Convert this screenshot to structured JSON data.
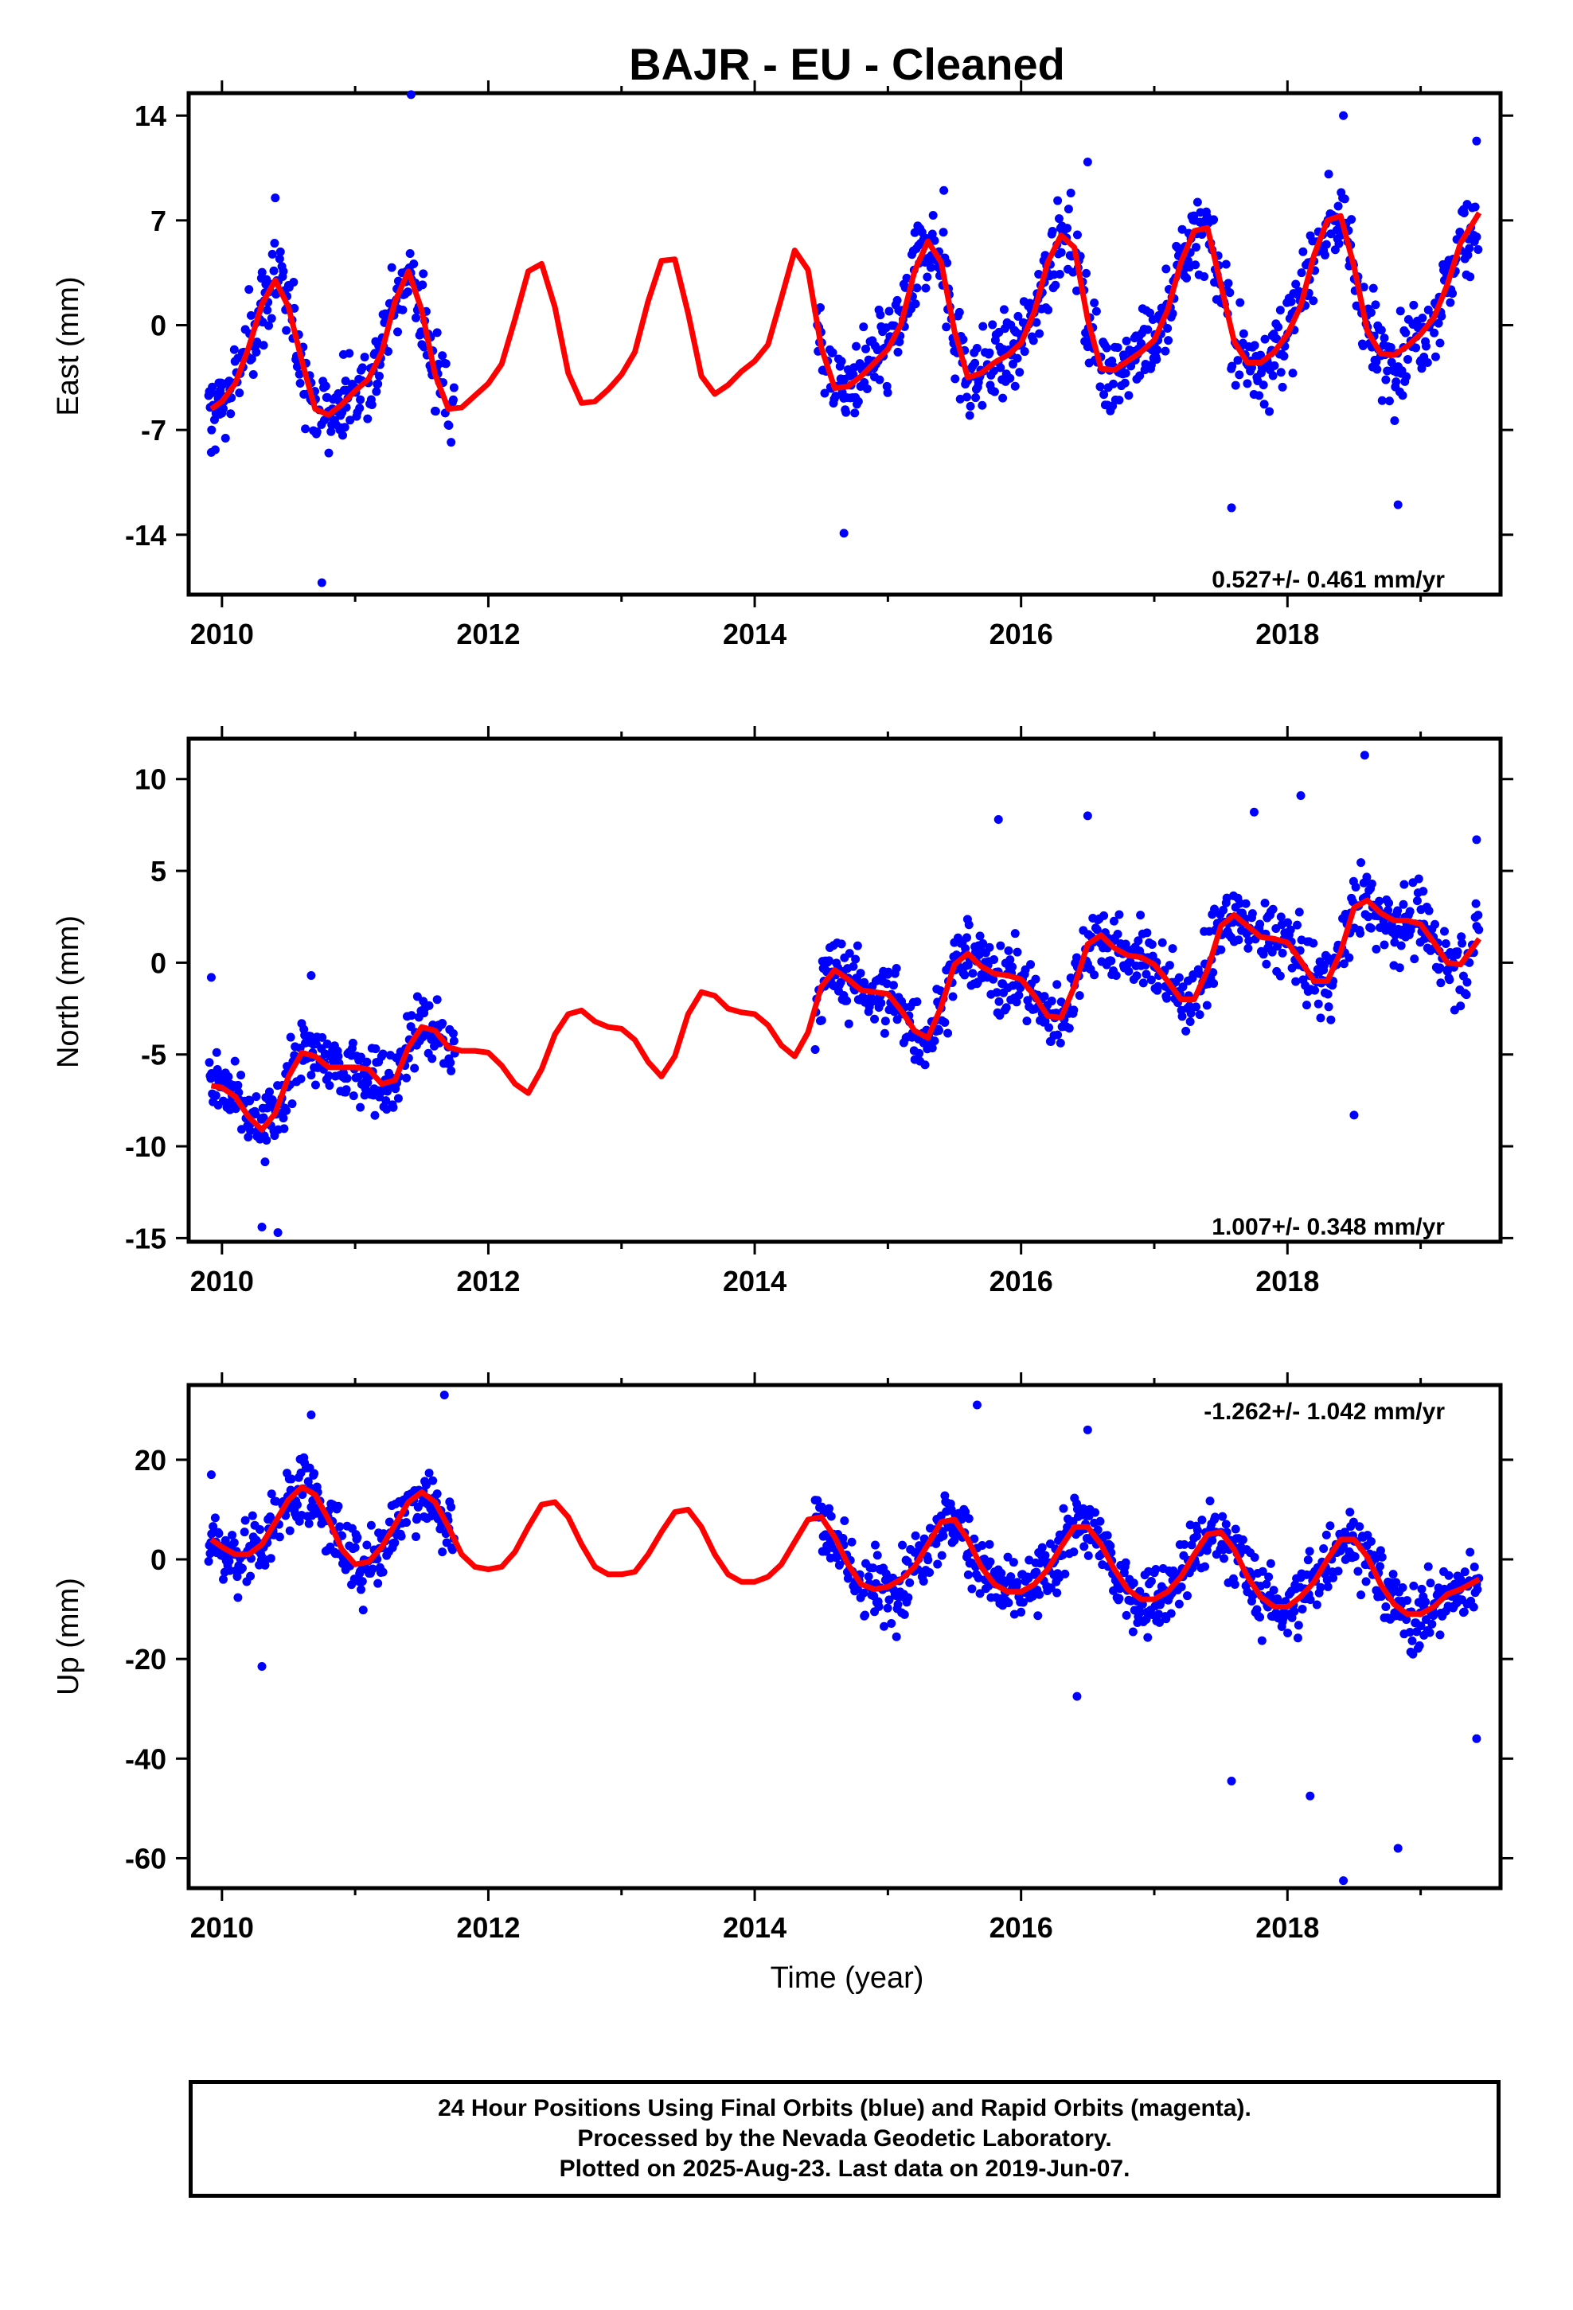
{
  "chart_data": [
    {
      "panel": "east",
      "type": "scatter",
      "title": "BAJR  - EU - Cleaned",
      "ylabel": "East (mm)",
      "xlim": [
        2009.75,
        2019.6
      ],
      "ylim": [
        -18,
        15.5
      ],
      "yticks": [
        14,
        7,
        0,
        -7,
        -14
      ],
      "xticks": [
        2010,
        2012,
        2014,
        2016,
        2018
      ],
      "grid": false,
      "rate_label": "0.527+/- 0.461 mm/yr",
      "rate_position": "bottom-right",
      "series": [
        {
          "kind": "observations",
          "color": "#0000ff",
          "gaps": [
            [
              2011.75,
              2014.45
            ]
          ],
          "trend_mm_per_yr": 0.527,
          "amplitude": 4.2,
          "peak_phase": 0.42,
          "scatter": 2.6,
          "offset_at_2010": -2.0,
          "sample_values": [
            {
              "x": 2009.92,
              "y": -8.5
            },
            {
              "x": 2010.4,
              "y": 8.5
            },
            {
              "x": 2010.75,
              "y": -17.2
            },
            {
              "x": 2011.42,
              "y": 15.4
            },
            {
              "x": 2014.67,
              "y": -13.9
            },
            {
              "x": 2015.42,
              "y": 9.0
            },
            {
              "x": 2016.5,
              "y": 10.9
            },
            {
              "x": 2017.58,
              "y": -12.2
            },
            {
              "x": 2018.42,
              "y": 14.0
            },
            {
              "x": 2018.83,
              "y": -12.0
            },
            {
              "x": 2019.42,
              "y": 12.3
            }
          ]
        },
        {
          "kind": "model_fit",
          "color": "#ff0000",
          "x": [
            2009.92,
            2010.0,
            2010.1,
            2010.2,
            2010.3,
            2010.4,
            2010.5,
            2010.6,
            2010.7,
            2010.8,
            2010.9,
            2011.0,
            2011.1,
            2011.2,
            2011.3,
            2011.4,
            2011.5,
            2011.6,
            2011.7,
            2011.8,
            2011.9,
            2012.0,
            2012.1,
            2012.2,
            2012.3,
            2012.4,
            2012.5,
            2012.6,
            2012.7,
            2012.8,
            2012.9,
            2013.0,
            2013.1,
            2013.2,
            2013.3,
            2013.4,
            2013.5,
            2013.6,
            2013.7,
            2013.8,
            2013.9,
            2014.0,
            2014.1,
            2014.2,
            2014.3,
            2014.4,
            2014.5,
            2014.6,
            2014.7,
            2014.8,
            2014.9,
            2015.0,
            2015.1,
            2015.2,
            2015.3,
            2015.4,
            2015.5,
            2015.6,
            2015.7,
            2015.8,
            2015.9,
            2016.0,
            2016.1,
            2016.2,
            2016.3,
            2016.4,
            2016.5,
            2016.6,
            2016.7,
            2016.8,
            2016.9,
            2017.0,
            2017.1,
            2017.2,
            2017.3,
            2017.4,
            2017.5,
            2017.6,
            2017.7,
            2017.8,
            2017.9,
            2018.0,
            2018.1,
            2018.2,
            2018.3,
            2018.4,
            2018.5,
            2018.6,
            2018.7,
            2018.8,
            2018.9,
            2019.0,
            2019.1,
            2019.2,
            2019.3,
            2019.44
          ],
          "values": [
            -5.6,
            -5.1,
            -3.9,
            -1.5,
            1.4,
            3.0,
            1.2,
            -2.4,
            -5.6,
            -6.0,
            -5.3,
            -4.4,
            -3.6,
            -1.8,
            1.6,
            3.6,
            1.0,
            -3.3,
            -5.6,
            -5.5,
            -4.7,
            -3.9,
            -2.6,
            0.4,
            3.6,
            4.1,
            1.2,
            -3.2,
            -5.2,
            -5.1,
            -4.3,
            -3.3,
            -1.8,
            1.6,
            4.3,
            4.4,
            0.8,
            -3.4,
            -4.6,
            -4.0,
            -3.1,
            -2.4,
            -1.3,
            1.8,
            5.0,
            3.7,
            -1.5,
            -4.2,
            -4.1,
            -3.4,
            -2.5,
            -1.6,
            0.1,
            3.6,
            5.6,
            4.2,
            -0.4,
            -3.5,
            -3.2,
            -2.5,
            -2.0,
            -1.2,
            0.9,
            4.2,
            6.0,
            5.2,
            0.4,
            -2.9,
            -3.0,
            -2.4,
            -1.8,
            -1.0,
            1.0,
            4.2,
            6.3,
            6.5,
            2.7,
            -1.1,
            -2.5,
            -2.5,
            -1.8,
            -0.6,
            1.3,
            4.7,
            7.0,
            7.3,
            3.9,
            -0.4,
            -1.9,
            -2.0,
            -1.4,
            -0.6,
            0.5,
            2.7,
            5.5,
            7.5
          ]
        }
      ]
    },
    {
      "panel": "north",
      "type": "scatter",
      "ylabel": "North (mm)",
      "xlim": [
        2009.75,
        2019.6
      ],
      "ylim": [
        -15.2,
        12.2
      ],
      "yticks": [
        10,
        5,
        0,
        -5,
        -10,
        -15
      ],
      "xticks": [
        2010,
        2012,
        2014,
        2016,
        2018
      ],
      "grid": false,
      "rate_label": "1.007+/- 0.348 mm/yr",
      "rate_position": "bottom-right",
      "series": [
        {
          "kind": "observations",
          "color": "#0000ff",
          "gaps": [
            [
              2011.75,
              2014.45
            ]
          ],
          "trend_mm_per_yr": 1.007,
          "amplitude": 2.0,
          "peak_phase": 0.55,
          "scatter": 1.8,
          "offset_at_2010": -8.5,
          "sample_values": [
            {
              "x": 2009.92,
              "y": -0.8
            },
            {
              "x": 2010.3,
              "y": -14.4
            },
            {
              "x": 2010.42,
              "y": -14.7
            },
            {
              "x": 2010.67,
              "y": -0.7
            },
            {
              "x": 2015.83,
              "y": 7.8
            },
            {
              "x": 2016.5,
              "y": 8.0
            },
            {
              "x": 2017.75,
              "y": 8.2
            },
            {
              "x": 2018.1,
              "y": 9.1
            },
            {
              "x": 2018.5,
              "y": -8.3
            },
            {
              "x": 2018.58,
              "y": 11.3
            },
            {
              "x": 2019.42,
              "y": 6.7
            }
          ]
        },
        {
          "kind": "model_fit",
          "color": "#ff0000",
          "x": [
            2009.92,
            2010.0,
            2010.1,
            2010.2,
            2010.3,
            2010.4,
            2010.5,
            2010.6,
            2010.7,
            2010.8,
            2010.9,
            2011.0,
            2011.1,
            2011.2,
            2011.3,
            2011.4,
            2011.5,
            2011.6,
            2011.7,
            2011.8,
            2011.9,
            2012.0,
            2012.1,
            2012.2,
            2012.3,
            2012.4,
            2012.5,
            2012.6,
            2012.7,
            2012.8,
            2012.9,
            2013.0,
            2013.1,
            2013.2,
            2013.3,
            2013.4,
            2013.5,
            2013.6,
            2013.7,
            2013.8,
            2013.9,
            2014.0,
            2014.1,
            2014.2,
            2014.3,
            2014.4,
            2014.5,
            2014.6,
            2014.7,
            2014.8,
            2014.9,
            2015.0,
            2015.1,
            2015.2,
            2015.3,
            2015.4,
            2015.5,
            2015.6,
            2015.7,
            2015.8,
            2015.9,
            2016.0,
            2016.1,
            2016.2,
            2016.3,
            2016.4,
            2016.5,
            2016.6,
            2016.7,
            2016.8,
            2016.9,
            2017.0,
            2017.1,
            2017.2,
            2017.3,
            2017.4,
            2017.5,
            2017.6,
            2017.7,
            2017.8,
            2017.9,
            2018.0,
            2018.1,
            2018.2,
            2018.3,
            2018.4,
            2018.5,
            2018.6,
            2018.7,
            2018.8,
            2018.9,
            2019.0,
            2019.1,
            2019.2,
            2019.3,
            2019.44
          ],
          "values": [
            -6.7,
            -6.8,
            -7.3,
            -8.4,
            -9.1,
            -8.2,
            -6.2,
            -4.9,
            -5.1,
            -5.7,
            -5.7,
            -5.7,
            -5.8,
            -6.6,
            -6.4,
            -4.6,
            -3.5,
            -3.7,
            -4.6,
            -4.8,
            -4.8,
            -4.9,
            -5.6,
            -6.6,
            -7.1,
            -5.8,
            -3.9,
            -2.8,
            -2.6,
            -3.2,
            -3.5,
            -3.6,
            -4.2,
            -5.4,
            -6.2,
            -5.1,
            -2.8,
            -1.6,
            -1.8,
            -2.5,
            -2.7,
            -2.8,
            -3.4,
            -4.5,
            -5.1,
            -3.8,
            -1.3,
            -0.4,
            -0.9,
            -1.5,
            -1.6,
            -1.7,
            -2.6,
            -3.7,
            -4.1,
            -2.4,
            -0.1,
            0.5,
            -0.2,
            -0.6,
            -0.7,
            -0.9,
            -1.8,
            -2.9,
            -3.0,
            -1.3,
            1.0,
            1.5,
            0.8,
            0.4,
            0.3,
            -0.1,
            -1.0,
            -2.0,
            -2.0,
            -0.4,
            2.0,
            2.6,
            2.0,
            1.4,
            1.3,
            1.1,
            0.1,
            -1.0,
            -1.0,
            0.6,
            3.0,
            3.4,
            2.7,
            2.3,
            2.3,
            2.1,
            1.1,
            0.0,
            -0.1,
            1.3
          ]
        }
      ]
    },
    {
      "panel": "up",
      "type": "scatter",
      "xlabel": "Time (year)",
      "ylabel": "Up (mm)",
      "xlim": [
        2009.75,
        2019.6
      ],
      "ylim": [
        -66,
        35
      ],
      "yticks": [
        20,
        0,
        -20,
        -40,
        -60
      ],
      "xticks": [
        2010,
        2012,
        2014,
        2016,
        2018
      ],
      "grid": false,
      "rate_label": "-1.262+/- 1.042 mm/yr",
      "rate_position": "top-right",
      "series": [
        {
          "kind": "observations",
          "color": "#0000ff",
          "gaps": [
            [
              2011.75,
              2014.45
            ]
          ],
          "trend_mm_per_yr": -1.262,
          "amplitude": 7.0,
          "peak_phase": 0.62,
          "scatter": 6.5,
          "offset_at_2010": 6.0,
          "sample_values": [
            {
              "x": 2009.92,
              "y": 17.0
            },
            {
              "x": 2010.67,
              "y": 29.0
            },
            {
              "x": 2011.67,
              "y": 33.0
            },
            {
              "x": 2010.3,
              "y": -21.5
            },
            {
              "x": 2015.67,
              "y": 31.0
            },
            {
              "x": 2016.5,
              "y": 26.0
            },
            {
              "x": 2016.42,
              "y": -27.5
            },
            {
              "x": 2017.58,
              "y": -44.5
            },
            {
              "x": 2018.17,
              "y": -47.5
            },
            {
              "x": 2018.42,
              "y": -64.5
            },
            {
              "x": 2018.83,
              "y": -58.0
            },
            {
              "x": 2019.42,
              "y": -36.0
            }
          ]
        },
        {
          "kind": "model_fit",
          "color": "#ff0000",
          "x": [
            2009.92,
            2010.0,
            2010.1,
            2010.2,
            2010.3,
            2010.4,
            2010.5,
            2010.6,
            2010.7,
            2010.8,
            2010.9,
            2011.0,
            2011.1,
            2011.2,
            2011.3,
            2011.4,
            2011.5,
            2011.6,
            2011.7,
            2011.8,
            2011.9,
            2012.0,
            2012.1,
            2012.2,
            2012.3,
            2012.4,
            2012.5,
            2012.6,
            2012.7,
            2012.8,
            2012.9,
            2013.0,
            2013.1,
            2013.2,
            2013.3,
            2013.4,
            2013.5,
            2013.6,
            2013.7,
            2013.8,
            2013.9,
            2014.0,
            2014.1,
            2014.2,
            2014.3,
            2014.4,
            2014.5,
            2014.6,
            2014.7,
            2014.8,
            2014.9,
            2015.0,
            2015.1,
            2015.2,
            2015.3,
            2015.4,
            2015.5,
            2015.6,
            2015.7,
            2015.8,
            2015.9,
            2016.0,
            2016.1,
            2016.2,
            2016.3,
            2016.4,
            2016.5,
            2016.6,
            2016.7,
            2016.8,
            2016.9,
            2017.0,
            2017.1,
            2017.2,
            2017.3,
            2017.4,
            2017.5,
            2017.6,
            2017.7,
            2017.8,
            2017.9,
            2018.0,
            2018.1,
            2018.2,
            2018.3,
            2018.4,
            2018.5,
            2018.6,
            2018.7,
            2018.8,
            2018.9,
            2019.0,
            2019.1,
            2019.2,
            2019.3,
            2019.44
          ],
          "values": [
            4.0,
            2.5,
            1.0,
            1.0,
            3.0,
            7.5,
            12.0,
            14.5,
            13.0,
            8.0,
            2.0,
            -1.0,
            -0.5,
            2.5,
            7.0,
            11.5,
            13.5,
            11.5,
            6.5,
            1.0,
            -1.5,
            -2.0,
            -1.5,
            1.5,
            6.5,
            11.0,
            11.5,
            8.5,
            3.0,
            -1.5,
            -3.0,
            -3.0,
            -2.5,
            1.0,
            5.5,
            9.5,
            10.0,
            6.5,
            1.0,
            -3.0,
            -4.5,
            -4.5,
            -3.5,
            -1.0,
            3.5,
            8.0,
            8.5,
            4.5,
            -1.0,
            -5.0,
            -6.0,
            -5.5,
            -4.0,
            -1.5,
            3.0,
            7.5,
            8.0,
            4.0,
            -1.5,
            -5.0,
            -6.5,
            -6.5,
            -5.0,
            -2.0,
            2.5,
            6.5,
            6.5,
            3.0,
            -2.0,
            -6.0,
            -8.0,
            -8.0,
            -6.5,
            -3.5,
            1.0,
            5.0,
            5.5,
            2.0,
            -3.5,
            -7.5,
            -9.5,
            -9.5,
            -7.5,
            -4.5,
            0.0,
            4.0,
            4.0,
            0.5,
            -5.0,
            -9.0,
            -11.0,
            -11.0,
            -9.5,
            -7.0,
            -6.0,
            -4.0
          ]
        }
      ]
    }
  ],
  "footer": {
    "line1": "24 Hour Positions Using Final Orbits (blue) and Rapid Orbits (magenta).",
    "line2": "Processed by the Nevada Geodetic Laboratory.",
    "line3": "Plotted on 2025-Aug-23. Last data on 2019-Jun-07."
  }
}
